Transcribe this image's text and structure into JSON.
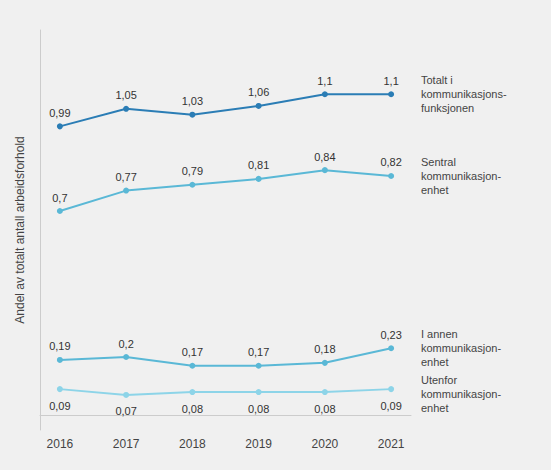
{
  "chart_data": {
    "type": "line",
    "x": [
      2016,
      2017,
      2018,
      2019,
      2020,
      2021
    ],
    "xlim": [
      2015.7,
      2021.3
    ],
    "xticks": [
      2016,
      2017,
      2018,
      2019,
      2020,
      2021
    ],
    "ylim": [
      -0.05,
      1.32
    ],
    "ylabel": "Andel av totalt antall arbeidsforhold",
    "tick_labels": "x",
    "grid": false,
    "data_labels": true,
    "marker": "circle",
    "series": [
      {
        "name": "Totalt i\nkommunikasjons-\nfunksjonen",
        "color": "#2b7db5",
        "values": [
          0.99,
          1.05,
          1.03,
          1.06,
          1.1,
          1.1
        ],
        "value_labels": [
          "0,99",
          "1,05",
          "1,03",
          "1,06",
          "1,1",
          "1,1"
        ]
      },
      {
        "name": "Sentral\nkommunikasjon-\nenhet",
        "color": "#5ab8d6",
        "values": [
          0.7,
          0.77,
          0.79,
          0.81,
          0.84,
          0.82
        ],
        "value_labels": [
          "0,7",
          "0,77",
          "0,79",
          "0,81",
          "0,84",
          "0,82"
        ]
      },
      {
        "name": "I annen\nkommunikasjon-\nenhet",
        "color": "#5ab8d6",
        "values": [
          0.19,
          0.2,
          0.17,
          0.17,
          0.18,
          0.23
        ],
        "value_labels": [
          "0,19",
          "0,2",
          "0,17",
          "0,17",
          "0,18",
          "0,23"
        ]
      },
      {
        "name": "Utenfor\nkommunikasjon-\nenhet",
        "color": "#8dd4e8",
        "values": [
          0.09,
          0.07,
          0.08,
          0.08,
          0.08,
          0.09
        ],
        "value_labels": [
          "0,09",
          "0,07",
          "0,08",
          "0,08",
          "0,08",
          "0,09"
        ]
      }
    ]
  }
}
